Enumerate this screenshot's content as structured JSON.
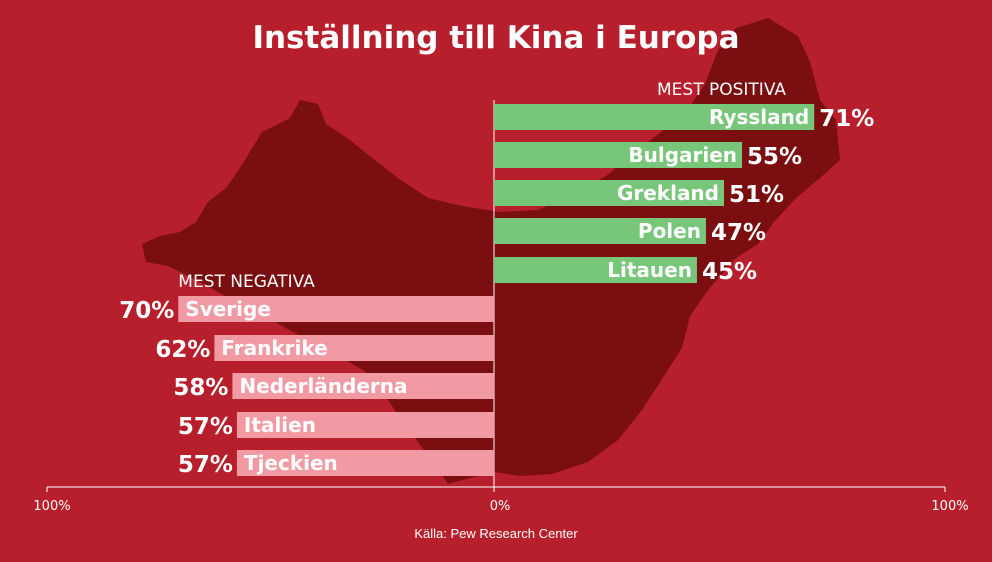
{
  "title": "Inställning till Kina i Europa",
  "source": "Källa: Pew Research Center",
  "colors": {
    "background": "#b81f2c",
    "map": "#7a0e10",
    "positive": "#78c679",
    "negative": "#f29aa3",
    "text": "#ffffff"
  },
  "chart_data": {
    "type": "bar",
    "title": "Inställning till Kina i Europa",
    "xlim": [
      -100,
      100
    ],
    "tick_labels": [
      "100%",
      "0%",
      "100%"
    ],
    "grid": false,
    "groups": [
      {
        "name": "MEST POSITIVA",
        "direction": "right",
        "categories": [
          "Ryssland",
          "Bulgarien",
          "Grekland",
          "Polen",
          "Litauen"
        ],
        "values": [
          71,
          55,
          51,
          47,
          45
        ],
        "value_labels": [
          "71%",
          "55%",
          "51%",
          "47%",
          "45%"
        ]
      },
      {
        "name": "MEST NEGATIVA",
        "direction": "left",
        "categories": [
          "Sverige",
          "Frankrike",
          "Nederländerna",
          "Italien",
          "Tjeckien"
        ],
        "values": [
          70,
          62,
          58,
          57,
          57
        ],
        "value_labels": [
          "70%",
          "62%",
          "58%",
          "57%",
          "57%"
        ]
      }
    ]
  }
}
